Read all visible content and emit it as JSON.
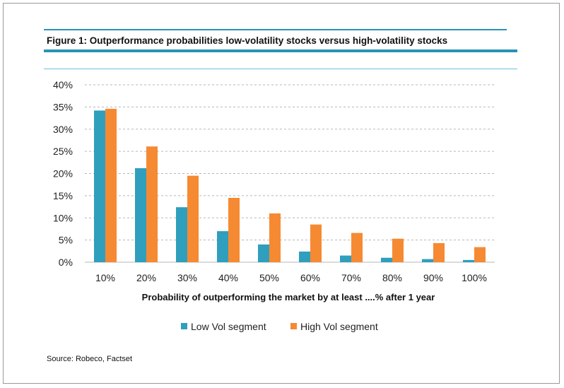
{
  "figure_title": "Figure 1: Outperformance probabilities low-volatility stocks versus high-volatility stocks",
  "source": "Source: Robeco, Factset",
  "colors": {
    "accent_rule": "#2a93b7",
    "low_vol": "#2f9fbd",
    "high_vol": "#f58a32",
    "grid": "#b7b7b7"
  },
  "chart_data": {
    "type": "bar",
    "title": "",
    "xlabel": "Probability of outperforming the market by at least ....% after 1 year",
    "ylabel": "",
    "categories": [
      "10%",
      "20%",
      "30%",
      "40%",
      "50%",
      "60%",
      "70%",
      "80%",
      "90%",
      "100%"
    ],
    "yticks": [
      "0%",
      "5%",
      "10%",
      "15%",
      "20%",
      "25%",
      "30%",
      "35%",
      "40%"
    ],
    "ylim": [
      0,
      40
    ],
    "grid": "horizontal dashed",
    "legend_position": "bottom",
    "series": [
      {
        "name": "Low Vol segment",
        "color": "#2f9fbd",
        "values": [
          34.2,
          21.2,
          12.4,
          7.0,
          4.0,
          2.4,
          1.5,
          1.0,
          0.7,
          0.5
        ]
      },
      {
        "name": "High Vol segment",
        "color": "#f58a32",
        "values": [
          34.6,
          26.1,
          19.5,
          14.5,
          11.0,
          8.5,
          6.6,
          5.3,
          4.3,
          3.4
        ]
      }
    ]
  }
}
